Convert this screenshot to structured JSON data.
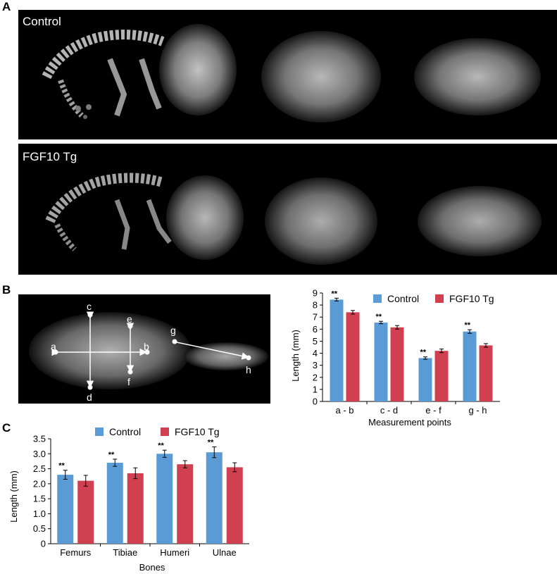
{
  "panels": {
    "a": {
      "letter": "A",
      "top_label": "Control",
      "bottom_label": "FGF10 Tg"
    },
    "b": {
      "letter": "B",
      "points": [
        "a",
        "b",
        "c",
        "d",
        "e",
        "f",
        "g",
        "h"
      ]
    },
    "c": {
      "letter": "C"
    }
  },
  "colors": {
    "control": "#5b9bd5",
    "tg": "#d04050",
    "image_bg": "#000000"
  },
  "chart_data": [
    {
      "type": "bar",
      "xlabel": "Measurement points",
      "ylabel": "Length (mm)",
      "ylim": [
        0,
        9
      ],
      "yticks": [
        "0",
        "1",
        "2",
        "3",
        "4",
        "5",
        "6",
        "7",
        "8",
        "9"
      ],
      "categories": [
        "a - b",
        "c - d",
        "e - f",
        "g - h"
      ],
      "series": [
        {
          "name": "Control",
          "values": [
            8.45,
            6.55,
            3.6,
            5.8
          ],
          "errors": [
            0.12,
            0.1,
            0.1,
            0.15
          ]
        },
        {
          "name": "FGF10 Tg",
          "values": [
            7.4,
            6.15,
            4.2,
            4.65
          ],
          "errors": [
            0.15,
            0.15,
            0.15,
            0.15
          ]
        }
      ],
      "significance": [
        "**",
        "**",
        "**",
        "**"
      ],
      "legend": "top"
    },
    {
      "type": "bar",
      "xlabel": "Bones",
      "ylabel": "Length (mm)",
      "ylim": [
        0,
        3.5
      ],
      "yticks": [
        "0",
        "0.5",
        "1.0",
        "1.5",
        "2.0",
        "2.5",
        "3.0",
        "3.5"
      ],
      "categories": [
        "Femurs",
        "Tibiae",
        "Humeri",
        "Ulnae"
      ],
      "series": [
        {
          "name": "Control",
          "values": [
            2.3,
            2.7,
            3.0,
            3.05
          ],
          "errors": [
            0.15,
            0.12,
            0.12,
            0.18
          ]
        },
        {
          "name": "FGF10 Tg",
          "values": [
            2.1,
            2.35,
            2.65,
            2.55
          ],
          "errors": [
            0.18,
            0.18,
            0.12,
            0.15
          ]
        }
      ],
      "significance": [
        "**",
        "**",
        "**",
        "**"
      ],
      "legend": "top"
    }
  ]
}
